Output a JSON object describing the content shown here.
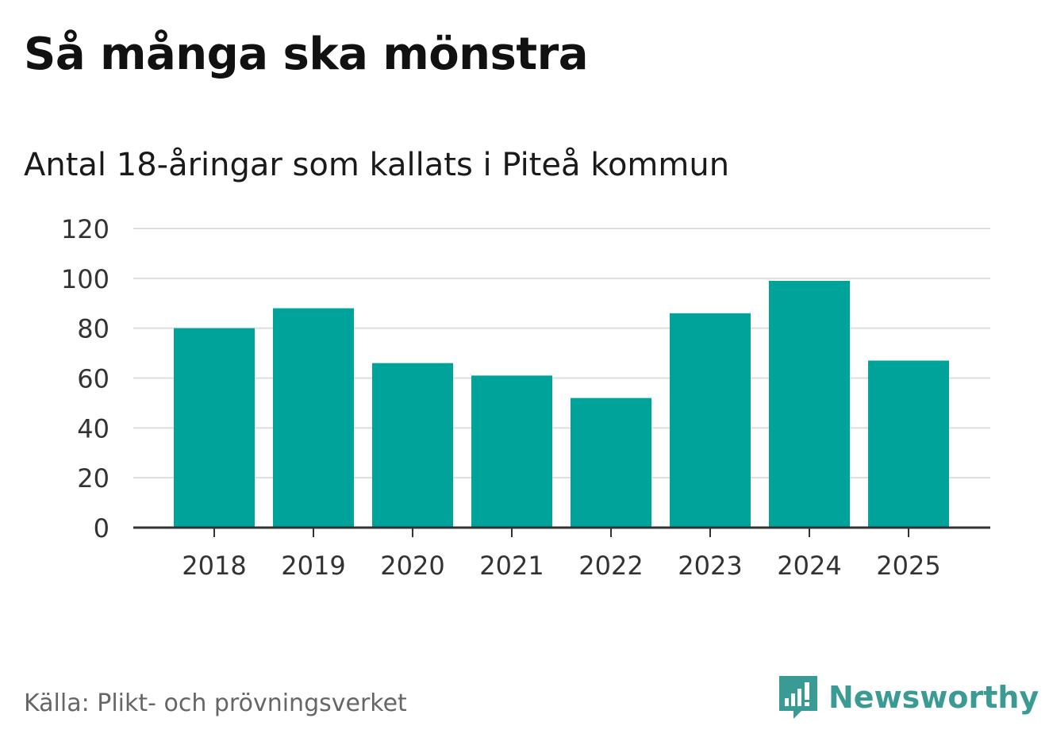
{
  "header": {
    "title": "Så många ska mönstra",
    "subtitle": "Antal 18-åringar som kallats i Piteå kommun"
  },
  "footer": {
    "source": "Källa: Plikt- och prövningsverket",
    "logo_text": "Newsworthy"
  },
  "colors": {
    "bar": "#00a39a",
    "logo": "#3a9a94",
    "grid": "#dddddd",
    "axis": "#333333"
  },
  "chart_data": {
    "type": "bar",
    "categories": [
      "2018",
      "2019",
      "2020",
      "2021",
      "2022",
      "2023",
      "2024",
      "2025"
    ],
    "values": [
      80,
      88,
      66,
      61,
      52,
      86,
      99,
      67
    ],
    "ylim": [
      0,
      120
    ],
    "yticks": [
      "0",
      "20",
      "40",
      "60",
      "80",
      "100",
      "120"
    ],
    "grid": true,
    "legend": "none"
  }
}
